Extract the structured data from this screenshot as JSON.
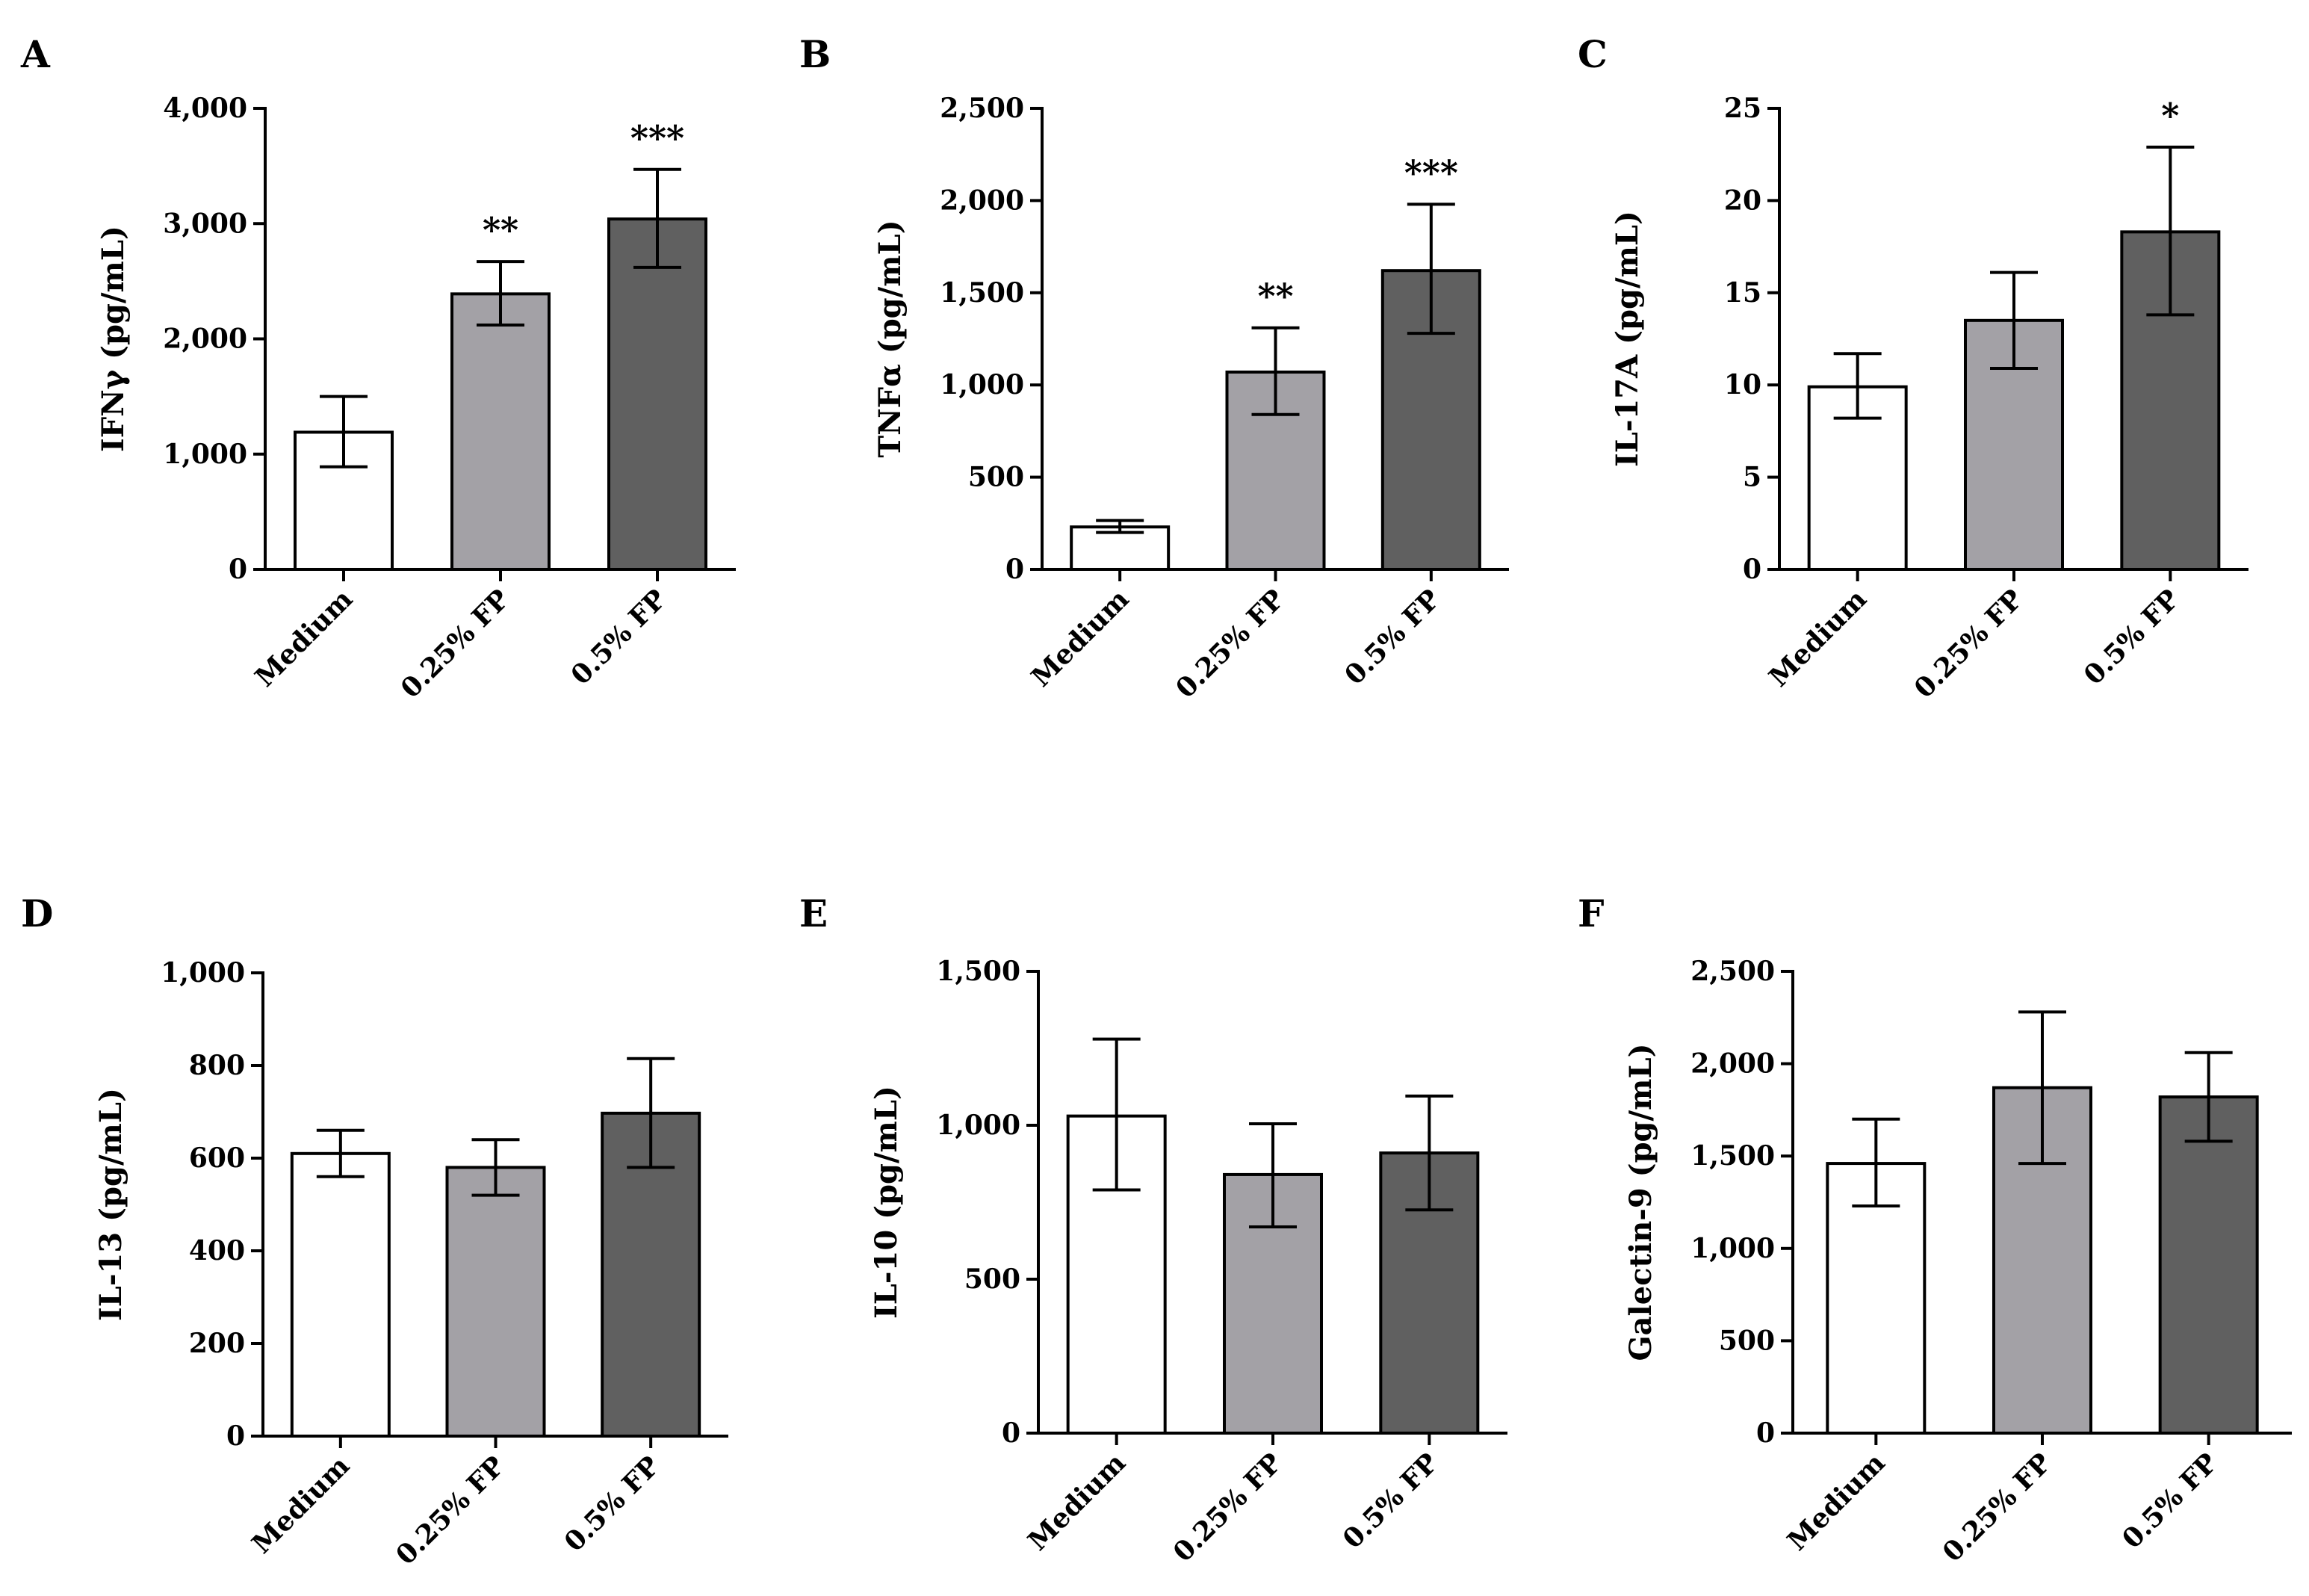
{
  "colors": {
    "medium": "#ffffff",
    "fp025": "#a3a1a6",
    "fp05": "#606060",
    "stroke": "#000000"
  },
  "chart_data": [
    {
      "panel": "A",
      "type": "bar",
      "ylabel": "IFNγ (pg/mL)",
      "categories": [
        "Medium",
        "0.25% FP",
        "0.5% FP"
      ],
      "values": [
        1190,
        2390,
        3040
      ],
      "err_low": [
        890,
        2120,
        2620
      ],
      "err_high": [
        1500,
        2670,
        3470
      ],
      "ylim": [
        0,
        4000
      ],
      "yticks": [
        0,
        1000,
        2000,
        3000,
        4000
      ],
      "ytick_labels": [
        "0",
        "1,000",
        "2,000",
        "3,000",
        "4,000"
      ],
      "annotations": [
        "",
        "**",
        "***"
      ]
    },
    {
      "panel": "B",
      "type": "bar",
      "ylabel": "TNFα (pg/mL)",
      "categories": [
        "Medium",
        "0.25% FP",
        "0.5% FP"
      ],
      "values": [
        230,
        1070,
        1620
      ],
      "err_low": [
        200,
        840,
        1280
      ],
      "err_high": [
        265,
        1310,
        1980
      ],
      "ylim": [
        0,
        2500
      ],
      "yticks": [
        0,
        500,
        1000,
        1500,
        2000,
        2500
      ],
      "ytick_labels": [
        "0",
        "500",
        "1,000",
        "1,500",
        "2,000",
        "2,500"
      ],
      "annotations": [
        "",
        "**",
        "***"
      ]
    },
    {
      "panel": "C",
      "type": "bar",
      "ylabel": "IL-17A (pg/mL)",
      "categories": [
        "Medium",
        "0.25% FP",
        "0.5% FP"
      ],
      "values": [
        9.9,
        13.5,
        18.3
      ],
      "err_low": [
        8.2,
        10.9,
        13.8
      ],
      "err_high": [
        11.7,
        16.1,
        22.9
      ],
      "ylim": [
        0,
        25
      ],
      "yticks": [
        0,
        5,
        10,
        15,
        20,
        25
      ],
      "ytick_labels": [
        "0",
        "5",
        "10",
        "15",
        "20",
        "25"
      ],
      "annotations": [
        "",
        "",
        "*"
      ]
    },
    {
      "panel": "D",
      "type": "bar",
      "ylabel": "IL-13 (pg/mL)",
      "categories": [
        "Medium",
        "0.25% FP",
        "0.5% FP"
      ],
      "values": [
        610,
        580,
        697
      ],
      "err_low": [
        560,
        520,
        580
      ],
      "err_high": [
        660,
        640,
        815
      ],
      "ylim": [
        0,
        1000
      ],
      "yticks": [
        0,
        200,
        400,
        600,
        800,
        1000
      ],
      "ytick_labels": [
        "0",
        "200",
        "400",
        "600",
        "800",
        "1,000"
      ],
      "annotations": [
        "",
        "",
        ""
      ]
    },
    {
      "panel": "E",
      "type": "bar",
      "ylabel": "IL-10 (pg/mL)",
      "categories": [
        "Medium",
        "0.25% FP",
        "0.5% FP"
      ],
      "values": [
        1030,
        840,
        910
      ],
      "err_low": [
        790,
        670,
        725
      ],
      "err_high": [
        1280,
        1005,
        1095
      ],
      "ylim": [
        0,
        1500
      ],
      "yticks": [
        0,
        500,
        1000,
        1500
      ],
      "ytick_labels": [
        "0",
        "500",
        "1,000",
        "1,500"
      ],
      "annotations": [
        "",
        "",
        ""
      ]
    },
    {
      "panel": "F",
      "type": "bar",
      "ylabel": "Galectin-9 (pg/mL)",
      "categories": [
        "Medium",
        "0.25% FP",
        "0.5% FP"
      ],
      "values": [
        1460,
        1870,
        1820
      ],
      "err_low": [
        1230,
        1460,
        1580
      ],
      "err_high": [
        1700,
        2280,
        2060
      ],
      "ylim": [
        0,
        2500
      ],
      "yticks": [
        0,
        500,
        1000,
        1500,
        2000,
        2500
      ],
      "ytick_labels": [
        "0",
        "500",
        "1,000",
        "1,500",
        "2,000",
        "2,500"
      ],
      "annotations": [
        "",
        "",
        ""
      ]
    }
  ]
}
